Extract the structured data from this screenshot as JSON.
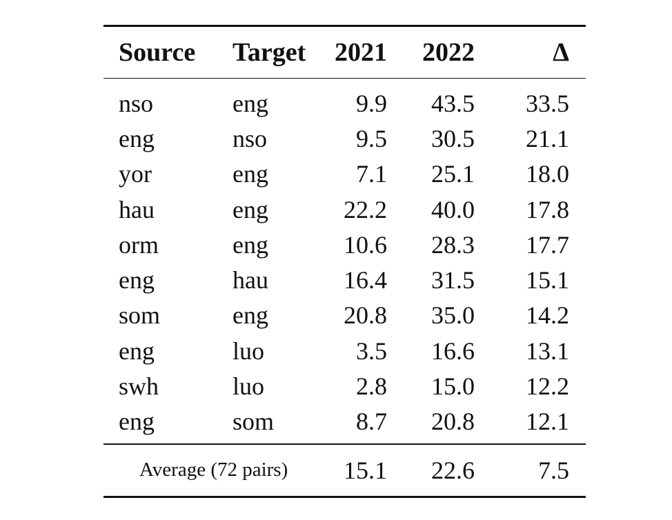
{
  "table": {
    "headers": [
      "Source",
      "Target",
      "2021",
      "2022",
      "Δ"
    ],
    "rows": [
      [
        "nso",
        "eng",
        "9.9",
        "43.5",
        "33.5"
      ],
      [
        "eng",
        "nso",
        "9.5",
        "30.5",
        "21.1"
      ],
      [
        "yor",
        "eng",
        "7.1",
        "25.1",
        "18.0"
      ],
      [
        "hau",
        "eng",
        "22.2",
        "40.0",
        "17.8"
      ],
      [
        "orm",
        "eng",
        "10.6",
        "28.3",
        "17.7"
      ],
      [
        "eng",
        "hau",
        "16.4",
        "31.5",
        "15.1"
      ],
      [
        "som",
        "eng",
        "20.8",
        "35.0",
        "14.2"
      ],
      [
        "eng",
        "luo",
        "3.5",
        "16.6",
        "13.1"
      ],
      [
        "swh",
        "luo",
        "2.8",
        "15.0",
        "12.2"
      ],
      [
        "eng",
        "som",
        "8.7",
        "20.8",
        "12.1"
      ]
    ],
    "footer": {
      "label": "Average (72 pairs)",
      "v2021": "15.1",
      "v2022": "22.6",
      "delta": "7.5"
    }
  }
}
